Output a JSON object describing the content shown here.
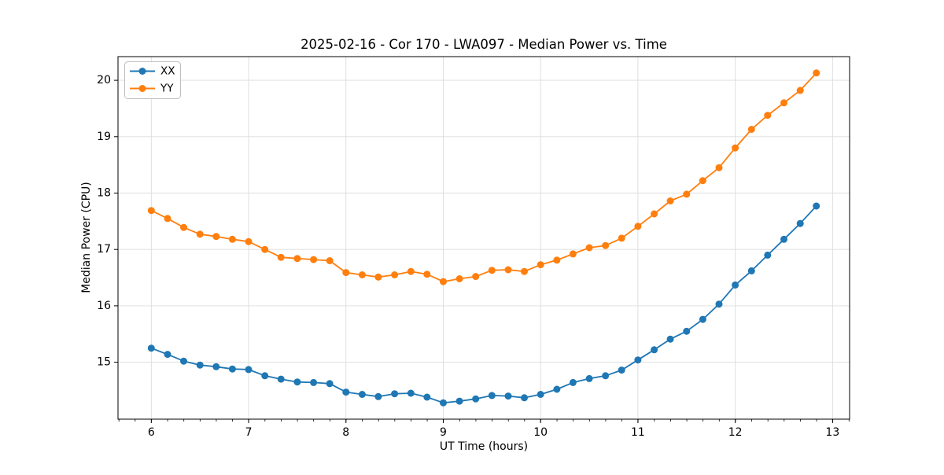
{
  "chart_data": {
    "type": "line",
    "title": "2025-02-16 - Cor 170 - LWA097 - Median Power vs. Time",
    "xlabel": "UT Time (hours)",
    "ylabel": "Median Power (CPU)",
    "xlim": [
      5.658,
      13.175
    ],
    "ylim": [
      13.99,
      20.42
    ],
    "xticks": [
      6,
      7,
      8,
      9,
      10,
      11,
      12,
      13
    ],
    "yticks": [
      15,
      16,
      17,
      18,
      19,
      20
    ],
    "x_minor_step": 0.1667,
    "grid": "major",
    "legend_position": "upper-left",
    "background_color": "#ffffff",
    "grid_color": "#dcdcdc",
    "x": [
      6.0,
      6.167,
      6.333,
      6.5,
      6.667,
      6.833,
      7.0,
      7.167,
      7.333,
      7.5,
      7.667,
      7.833,
      8.0,
      8.167,
      8.333,
      8.5,
      8.667,
      8.833,
      9.0,
      9.167,
      9.333,
      9.5,
      9.667,
      9.833,
      10.0,
      10.167,
      10.333,
      10.5,
      10.667,
      10.833,
      11.0,
      11.167,
      11.333,
      11.5,
      11.667,
      11.833,
      12.0,
      12.167,
      12.333,
      12.5,
      12.667,
      12.833
    ],
    "series": [
      {
        "name": "XX",
        "color": "#1f77b4",
        "values": [
          15.25,
          15.14,
          15.02,
          14.95,
          14.92,
          14.88,
          14.87,
          14.76,
          14.7,
          14.65,
          14.64,
          14.62,
          14.47,
          14.43,
          14.39,
          14.44,
          14.45,
          14.38,
          14.28,
          14.31,
          14.35,
          14.41,
          14.4,
          14.37,
          14.43,
          14.52,
          14.64,
          14.71,
          14.76,
          14.86,
          15.04,
          15.22,
          15.41,
          15.55,
          15.76,
          16.03,
          16.37,
          16.62,
          16.9,
          17.18,
          17.46,
          17.77
        ]
      },
      {
        "name": "YY",
        "color": "#ff7f0e",
        "values": [
          17.69,
          17.55,
          17.39,
          17.27,
          17.23,
          17.18,
          17.14,
          17.0,
          16.86,
          16.84,
          16.82,
          16.8,
          16.59,
          16.55,
          16.51,
          16.55,
          16.61,
          16.56,
          16.43,
          16.48,
          16.52,
          16.63,
          16.64,
          16.61,
          16.73,
          16.81,
          16.92,
          17.03,
          17.07,
          17.2,
          17.41,
          17.63,
          17.86,
          17.98,
          18.22,
          18.45,
          18.8,
          19.13,
          19.38,
          19.6,
          19.82,
          20.13
        ]
      }
    ]
  }
}
